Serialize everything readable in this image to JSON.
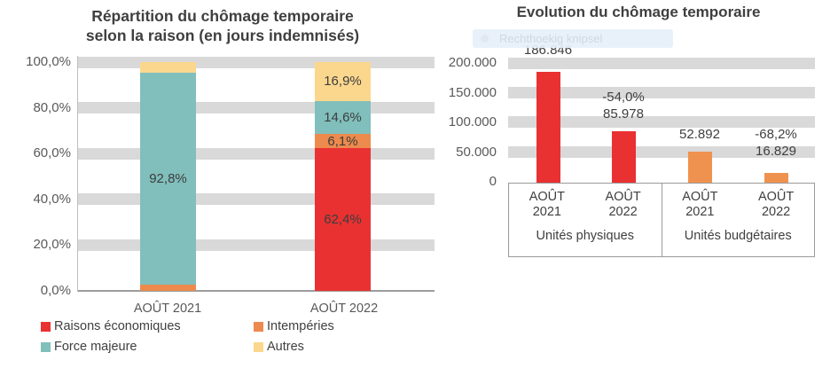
{
  "overlay": {
    "label": "Rechthoekig knipsel"
  },
  "colors": {
    "red": "#e93132",
    "orange": "#ed8a4d",
    "orange_light": "#f0924f",
    "teal": "#80bfbb",
    "yellow": "#fbd78d",
    "gridband": "#d9d9d9",
    "axis_text": "#595959",
    "label_text": "#3f3f3f",
    "box_border": "#9a9a9a",
    "baseline": "#9d9d9d",
    "overlay_bg": "#e7f0f9",
    "overlay_text": "#ccd5df"
  },
  "left_chart": {
    "title_line1": "Répartition du chômage temporaire",
    "title_line2": "selon la raison (en jours indemnisés)",
    "x_labels": [
      "AOÛT 2021",
      "AOÛT 2022"
    ],
    "legend": [
      "Raisons économiques",
      "Intempéries",
      "Force majeure",
      "Autres"
    ]
  },
  "right_chart": {
    "title": "Evolution du chômage temporaire",
    "cat_labels": [
      "AOÛT 2021",
      "AOÛT 2022",
      "AOÛT 2021",
      "AOÛT 2022"
    ],
    "group_labels": [
      "Unités physiques",
      "Unités budgétaires"
    ]
  },
  "chart_data": [
    {
      "type": "bar",
      "subtype": "stacked-100",
      "title": "Répartition du chômage temporaire selon la raison (en jours indemnisés)",
      "categories": [
        "AOÛT 2021",
        "AOÛT 2022"
      ],
      "series": [
        {
          "name": "Raisons économiques",
          "color": "#e93132",
          "values": [
            0.0,
            62.4
          ],
          "data_labels": [
            null,
            "62,4%"
          ]
        },
        {
          "name": "Intempéries",
          "color": "#ed8a4d",
          "values": [
            2.6,
            6.1
          ],
          "data_labels": [
            null,
            "6,1%"
          ]
        },
        {
          "name": "Force majeure",
          "color": "#80bfbb",
          "values": [
            92.8,
            14.6
          ],
          "data_labels": [
            "92,8%",
            "14,6%"
          ]
        },
        {
          "name": "Autres",
          "color": "#fbd78d",
          "values": [
            4.6,
            16.9
          ],
          "data_labels": [
            null,
            "16,9%"
          ]
        }
      ],
      "stack_order_bottom_to_top": [
        "Raisons économiques",
        "Intempéries",
        "Force majeure",
        "Autres"
      ],
      "ylim": [
        0,
        100
      ],
      "y_ticks": [
        "100,0%",
        "80,0%",
        "60,0%",
        "40,0%",
        "20,0%",
        "0,0%"
      ],
      "grid": "horizontal-bands",
      "legend_position": "bottom"
    },
    {
      "type": "bar",
      "title": "Evolution du chômage temporaire",
      "groups": [
        "Unités physiques",
        "Unités budgétaires"
      ],
      "categories": [
        "AOÛT 2021",
        "AOÛT 2022",
        "AOÛT 2021",
        "AOÛT 2022"
      ],
      "values": [
        186846,
        85978,
        52892,
        16829
      ],
      "value_labels": [
        "186.846",
        "85.978",
        "52.892",
        "16.829"
      ],
      "pct_change_labels": [
        null,
        "-54,0%",
        null,
        "-68,2%"
      ],
      "bar_colors": [
        "#e93132",
        "#e93132",
        "#f0924f",
        "#f0924f"
      ],
      "ylim": [
        0,
        200000
      ],
      "y_ticks": [
        "200.000",
        "150.000",
        "100.000",
        "50.000",
        "0"
      ],
      "grid": "horizontal-bands",
      "legend_position": "none"
    }
  ]
}
